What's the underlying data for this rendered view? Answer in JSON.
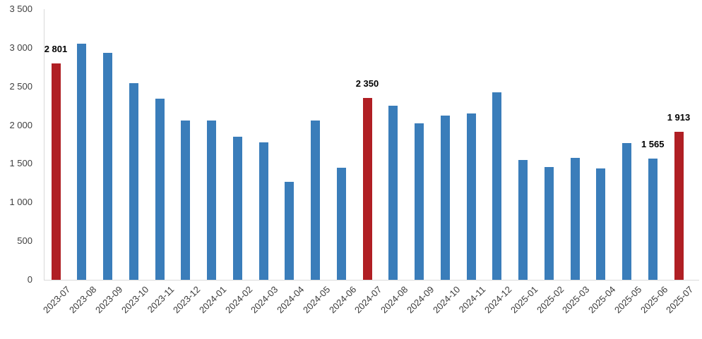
{
  "chart_data": {
    "type": "bar",
    "title": "",
    "categories": [
      "2023-07",
      "2023-08",
      "2023-09",
      "2023-10",
      "2023-11",
      "2023-12",
      "2024-01",
      "2024-02",
      "2024-03",
      "2024-04",
      "2024-05",
      "2024-06",
      "2024-07",
      "2024-08",
      "2024-09",
      "2024-10",
      "2024-11",
      "2024-12",
      "2025-01",
      "2025-02",
      "2025-03",
      "2025-04",
      "2025-05",
      "2025-06",
      "2025-07"
    ],
    "values": [
      2801,
      3050,
      2935,
      2540,
      2345,
      2060,
      2060,
      1850,
      1780,
      1270,
      2060,
      1445,
      2350,
      2255,
      2020,
      2125,
      2155,
      2420,
      1550,
      1460,
      1580,
      1440,
      1770,
      1565,
      1913
    ],
    "highlight_indices": [
      0,
      12,
      24
    ],
    "value_labels": {
      "0": "2 801",
      "12": "2 350",
      "23": "1 565",
      "24": "1 913"
    },
    "ylim": [
      0,
      3500
    ],
    "yticks": [
      0,
      500,
      1000,
      1500,
      2000,
      2500,
      3000,
      3500
    ],
    "ytick_labels": [
      "0",
      "500",
      "1 000",
      "1 500",
      "2 000",
      "2 500",
      "3 000",
      "3 500"
    ],
    "xlabel": "",
    "ylabel": "",
    "grid": "off",
    "legend": "none",
    "colors": {
      "bar": "#3a7dba",
      "highlight": "#b01f24",
      "axis_line": "#d9d9d9",
      "tick_text": "#3f3f3f",
      "value_label_text": "#000000"
    }
  }
}
